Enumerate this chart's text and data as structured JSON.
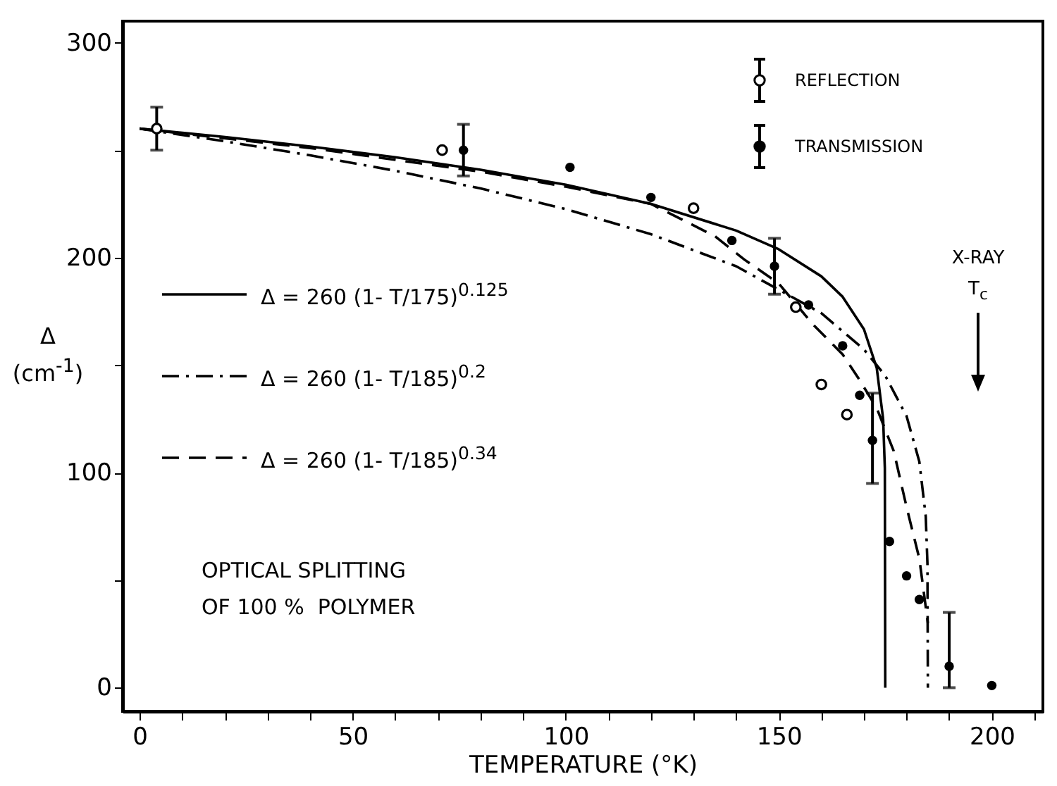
{
  "chart_data": {
    "type": "line",
    "xlabel": "TEMPERATURE (°K)",
    "ylabel": "Δ (cm$^{-1}$)",
    "xlim": [
      -4,
      212
    ],
    "ylim": [
      -11,
      310
    ],
    "xticks": [
      0,
      {
        "value": 10,
        "label": null
      },
      {
        "value": 20,
        "label": null
      },
      {
        "value": 30,
        "label": null
      },
      {
        "value": 40,
        "label": null
      },
      50,
      {
        "value": 60,
        "label": null
      },
      {
        "value": 70,
        "label": null
      },
      {
        "value": 80,
        "label": null
      },
      {
        "value": 90,
        "label": null
      },
      100,
      {
        "value": 110,
        "label": null
      },
      {
        "value": 120,
        "label": null
      },
      {
        "value": 130,
        "label": null
      },
      {
        "value": 140,
        "label": null
      },
      150,
      {
        "value": 160,
        "label": null
      },
      {
        "value": 170,
        "label": null
      },
      {
        "value": 180,
        "label": null
      },
      {
        "value": 190,
        "label": null
      },
      200,
      {
        "value": 210,
        "label": null
      }
    ],
    "yticks": [
      0,
      {
        "value": 50,
        "label": null
      },
      100,
      {
        "value": 150,
        "label": null
      },
      200,
      {
        "value": 250,
        "label": null
      },
      300
    ],
    "grid": false,
    "legend": "top right",
    "series": [
      {
        "name": "Δ = 260 (1- T/175)$^{0.125}$",
        "type": "line",
        "color": "#000000",
        "line_style": "solid",
        "marker": "none",
        "x": [
          0,
          20,
          40,
          60,
          80,
          100,
          120,
          140,
          150,
          160,
          165,
          170,
          173,
          174.5,
          174.9,
          175
        ],
        "values": [
          260,
          256.1,
          251.7,
          246.7,
          240.9,
          233.9,
          225,
          212.6,
          203.9,
          191.3,
          181.8,
          166.7,
          148.7,
          125,
          102.2,
          0
        ]
      },
      {
        "name": "Δ = 260 (1- T/185)$^{0.2}$",
        "type": "line",
        "color": "#000000",
        "line_style": "dashdot",
        "marker": "none",
        "x": [
          0,
          20,
          40,
          60,
          80,
          100,
          120,
          140,
          160,
          170,
          175,
          180,
          183,
          184.5,
          184.9,
          185
        ],
        "values": [
          260,
          254.1,
          247.6,
          240.4,
          232.2,
          222.6,
          210.9,
          196,
          174.2,
          157.3,
          145.1,
          126.3,
          105.1,
          79.7,
          57.7,
          0
        ]
      },
      {
        "name": "Δ = 260 (1- T/185)$^{0.34}$",
        "type": "line",
        "color": "#000000",
        "line_style": "dashed",
        "marker": "none",
        "x": [
          0,
          40,
          80,
          100,
          120,
          135,
          142,
          150,
          158,
          165,
          169,
          173,
          177,
          180,
          183,
          185
        ],
        "values": [
          260,
          251,
          240,
          233,
          225,
          210,
          199,
          188,
          169,
          155,
          143,
          130,
          110,
          84,
          60,
          30
        ]
      },
      {
        "name": "REFLECTION",
        "type": "scatter",
        "color": "#000000",
        "marker": "circle-open",
        "x": [
          4,
          71,
          130,
          154,
          160,
          166
        ],
        "values": [
          260,
          250,
          223,
          177,
          141,
          127
        ],
        "errors": [
          10,
          null,
          null,
          null,
          null,
          null
        ]
      },
      {
        "name": "TRANSMISSION",
        "type": "scatter",
        "color": "#000000",
        "marker": "circle",
        "x": [
          76,
          101,
          120,
          139,
          149,
          157,
          165,
          169,
          172,
          176,
          180,
          183,
          190,
          200
        ],
        "values": [
          250,
          242,
          228,
          208,
          196,
          178,
          159,
          136,
          115,
          68,
          52,
          41,
          10,
          1
        ],
        "errors": [
          12,
          null,
          null,
          null,
          13,
          null,
          null,
          null,
          [
            95,
            137
          ],
          null,
          null,
          null,
          [
            0,
            35
          ],
          null
        ]
      }
    ],
    "annotations": [
      "X-RAY",
      "T$_{c}$",
      "OPTICAL SPLITTING\nOF 100 %  POLYMER"
    ]
  }
}
